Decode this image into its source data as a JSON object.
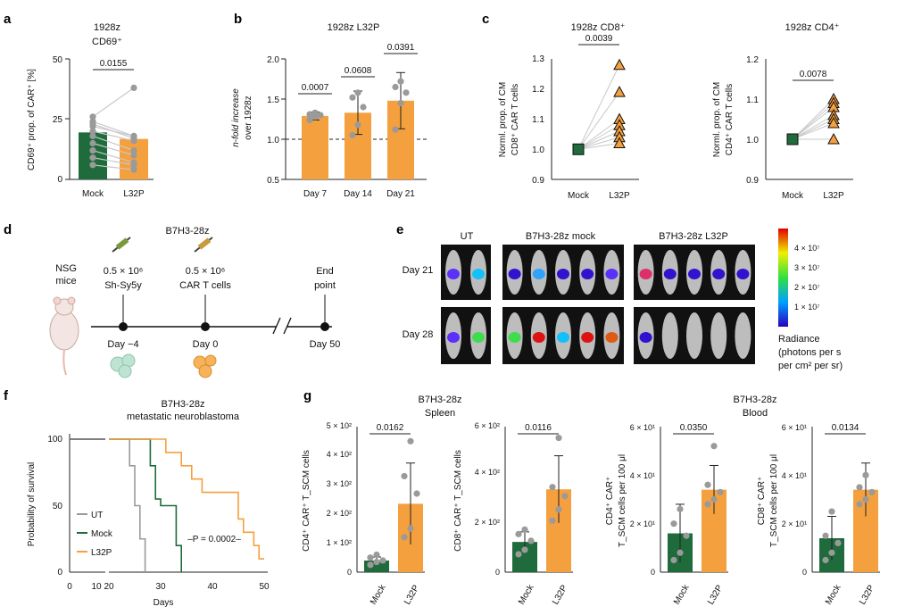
{
  "colors": {
    "mock": "#1f6b3c",
    "l32p": "#f5a03e",
    "ut": "#9a9a9a",
    "dots": "#9a9a9a",
    "pairline": "#c8c8c8"
  },
  "panel_labels": {
    "a": "a",
    "b": "b",
    "c": "c",
    "d": "d",
    "e": "e",
    "f": "f",
    "g": "g"
  },
  "panel_a": {
    "title1": "1928z",
    "title2": "CD69⁺",
    "ylabel": "CD69⁺ prop. of CAR⁺ [%]",
    "yticks": [
      "0",
      "25",
      "50"
    ],
    "categories": [
      "Mock",
      "L32P"
    ],
    "pvalue": "0.0155"
  },
  "panel_b": {
    "title": "1928z L32P",
    "ylabel1": "n-fold increase",
    "ylabel2": "over 1928z",
    "yticks": [
      "0.5",
      "1.0",
      "1.5",
      "2.0"
    ],
    "categories": [
      "Day 7",
      "Day 14",
      "Day 21"
    ],
    "pvalues": [
      "0.0007",
      "0.0608",
      "0.0391"
    ]
  },
  "panel_c": {
    "title_cd8": "1928z CD8⁺",
    "title_cd4": "1928z CD4⁺",
    "ylabel_cd8_1": "Norml. prop. of CM",
    "ylabel_cd8_2": "CD8⁺ CAR T cells",
    "ylabel_cd4_1": "Norml. prop. of CM",
    "ylabel_cd4_2": "CD4⁺ CAR T cells",
    "yticks_cd8": [
      "0.9",
      "1.0",
      "1.1",
      "1.2",
      "1.3"
    ],
    "yticks_cd4": [
      "0.9",
      "1.0",
      "1.1",
      "1.2"
    ],
    "categories": [
      "Mock",
      "L32P"
    ],
    "pvalue_cd8": "0.0039",
    "pvalue_cd4": "0.0078"
  },
  "panel_d": {
    "title": "B7H3-28z",
    "mice": "NSG",
    "mice2": "mice",
    "inj1_dose": "0.5 × 10⁶",
    "inj1_what": "Sh-Sy5y",
    "inj2_dose": "0.5 × 10⁶",
    "inj2_what": "CAR T cells",
    "end1": "End",
    "end2": "point",
    "t1": "Day −4",
    "t2": "Day 0",
    "t3": "Day 50"
  },
  "panel_e": {
    "groups": [
      "UT",
      "B7H3-28z mock",
      "B7H3-28z L32P"
    ],
    "rows": [
      "Day 21",
      "Day 28"
    ],
    "scale_ticks": [
      "4 × 10⁷",
      "3 × 10⁷",
      "2 × 10⁷",
      "1 × 10⁷"
    ],
    "legend1": "Radiance",
    "legend2": "(photons per s",
    "legend3": "per cm² per sr)"
  },
  "panel_f": {
    "title1": "B7H3-28z",
    "title2": "metastatic neuroblastoma",
    "ylabel": "Probability of survival",
    "xlabel": "Days",
    "yticks": [
      "0",
      "50",
      "100"
    ],
    "xticks": [
      "0",
      "10",
      "20",
      "30",
      "40",
      "50"
    ],
    "legend": [
      "UT",
      "Mock",
      "L32P"
    ],
    "pvalue": "–P = 0.0002–"
  },
  "panel_g": {
    "title_spleen1": "B7H3-28z",
    "title_spleen2": "Spleen",
    "title_blood1": "B7H3-28z",
    "title_blood2": "Blood",
    "ylabel1": "CD4⁺ CAR⁺ T_SCM cells",
    "ylabel2": "CD8⁺ CAR⁺ T_SCM cells",
    "ylabel3a": "CD4⁺ CAR⁺",
    "ylabel3b": "T_SCM cells per 100 μl",
    "ylabel4a": "CD8⁺ CAR⁺",
    "ylabel4b": "T_SCM cells per 100 μl",
    "yticks1": [
      "0",
      "1 × 10²",
      "2 × 10²",
      "3 × 10²",
      "4 × 10²",
      "5 × 10²"
    ],
    "yticks2": [
      "0",
      "2 × 10²",
      "4 × 10²",
      "6 × 10²"
    ],
    "yticks3": [
      "0",
      "2 × 10¹",
      "4 × 10¹",
      "6 × 10¹"
    ],
    "yticks4": [
      "0",
      "2 × 10¹",
      "4 × 10¹",
      "6 × 10¹"
    ],
    "categories": [
      "Mock",
      "L32P"
    ],
    "pvalues": [
      "0.0162",
      "0.0116",
      "0.0350",
      "0.0134"
    ]
  },
  "chart_data": [
    {
      "type": "bar",
      "id": "a",
      "categories": [
        "Mock",
        "L32P"
      ],
      "values": [
        19.5,
        16.8
      ],
      "ylim": [
        0,
        50
      ],
      "ylabel": "CD69⁺ prop. of CAR⁺ [%]",
      "paired": [
        [
          26,
          38
        ],
        [
          24,
          18
        ],
        [
          23,
          17
        ],
        [
          22,
          18
        ],
        [
          20,
          16
        ],
        [
          18,
          12
        ],
        [
          15,
          10
        ],
        [
          12,
          7
        ],
        [
          9,
          6
        ],
        [
          6,
          4
        ]
      ]
    },
    {
      "type": "bar",
      "id": "b",
      "categories": [
        "Day 7",
        "Day 14",
        "Day 21"
      ],
      "values": [
        1.29,
        1.33,
        1.48
      ],
      "errors": [
        0.05,
        0.27,
        0.35
      ],
      "ylim": [
        0.5,
        2.0
      ],
      "points": [
        [
          1.24,
          1.28,
          1.3,
          1.31,
          1.33
        ],
        [
          1.05,
          1.18,
          1.4,
          1.52,
          1.58
        ],
        [
          1.12,
          1.45,
          1.58,
          1.65,
          1.72
        ]
      ]
    },
    {
      "type": "scatter",
      "id": "c_cd8",
      "categories": [
        "Mock",
        "L32P"
      ],
      "ylim": [
        0.9,
        1.3
      ],
      "mock": [
        1.0
      ],
      "l32p": [
        1.28,
        1.19,
        1.1,
        1.08,
        1.06,
        1.04,
        1.02
      ]
    },
    {
      "type": "scatter",
      "id": "c_cd4",
      "categories": [
        "Mock",
        "L32P"
      ],
      "ylim": [
        0.9,
        1.2
      ],
      "mock": [
        1.0
      ],
      "l32p": [
        1.1,
        1.09,
        1.08,
        1.06,
        1.05,
        1.04,
        1.0
      ]
    },
    {
      "type": "line",
      "id": "f",
      "series": [
        {
          "name": "UT",
          "points": [
            [
              0,
              100
            ],
            [
              15,
              100
            ],
            [
              24,
              100
            ],
            [
              24,
              80
            ],
            [
              25,
              80
            ],
            [
              25,
              50
            ],
            [
              26,
              50
            ],
            [
              26,
              25
            ],
            [
              27,
              25
            ],
            [
              27,
              0
            ]
          ]
        },
        {
          "name": "Mock",
          "points": [
            [
              0,
              100
            ],
            [
              15,
              100
            ],
            [
              28,
              100
            ],
            [
              28,
              80
            ],
            [
              29,
              80
            ],
            [
              29,
              55
            ],
            [
              30,
              55
            ],
            [
              30,
              50
            ],
            [
              33,
              50
            ],
            [
              33,
              20
            ],
            [
              34,
              20
            ],
            [
              34,
              0
            ]
          ]
        },
        {
          "name": "L32P",
          "points": [
            [
              0,
              100
            ],
            [
              15,
              100
            ],
            [
              31,
              100
            ],
            [
              31,
              90
            ],
            [
              34,
              90
            ],
            [
              34,
              80
            ],
            [
              36,
              80
            ],
            [
              36,
              70
            ],
            [
              38,
              70
            ],
            [
              38,
              60
            ],
            [
              45,
              60
            ],
            [
              45,
              40
            ],
            [
              46,
              40
            ],
            [
              46,
              30
            ],
            [
              48,
              30
            ],
            [
              48,
              20
            ],
            [
              49,
              20
            ],
            [
              49,
              10
            ],
            [
              50,
              10
            ]
          ]
        }
      ],
      "xlim": [
        0,
        50
      ],
      "ylim": [
        0,
        100
      ]
    },
    {
      "type": "bar",
      "id": "g1",
      "categories": [
        "Mock",
        "L32P"
      ],
      "values": [
        40,
        235
      ],
      "errors": [
        12,
        140
      ],
      "ylim": [
        0,
        500
      ],
      "points": [
        [
          25,
          35,
          40,
          50,
          60
        ],
        [
          120,
          150,
          270,
          330,
          450
        ]
      ]
    },
    {
      "type": "bar",
      "id": "g2",
      "categories": [
        "Mock",
        "L32P"
      ],
      "values": [
        135,
        370
      ],
      "errors": [
        45,
        150
      ],
      "ylim": [
        0,
        650
      ],
      "points": [
        [
          80,
          100,
          140,
          170,
          190
        ],
        [
          230,
          280,
          340,
          380,
          600
        ]
      ]
    },
    {
      "type": "bar",
      "id": "g3",
      "categories": [
        "Mock",
        "L32P"
      ],
      "values": [
        16,
        34
      ],
      "errors": [
        12,
        10
      ],
      "ylim": [
        0,
        60
      ],
      "points": [
        [
          5,
          8,
          15,
          20,
          26
        ],
        [
          28,
          30,
          33,
          36,
          52
        ]
      ]
    },
    {
      "type": "bar",
      "id": "g4",
      "categories": [
        "Mock",
        "L32P"
      ],
      "values": [
        14,
        34
      ],
      "errors": [
        9,
        11
      ],
      "ylim": [
        0,
        60
      ],
      "points": [
        [
          5,
          8,
          12,
          15,
          25
        ],
        [
          28,
          30,
          33,
          35,
          40
        ]
      ]
    }
  ]
}
